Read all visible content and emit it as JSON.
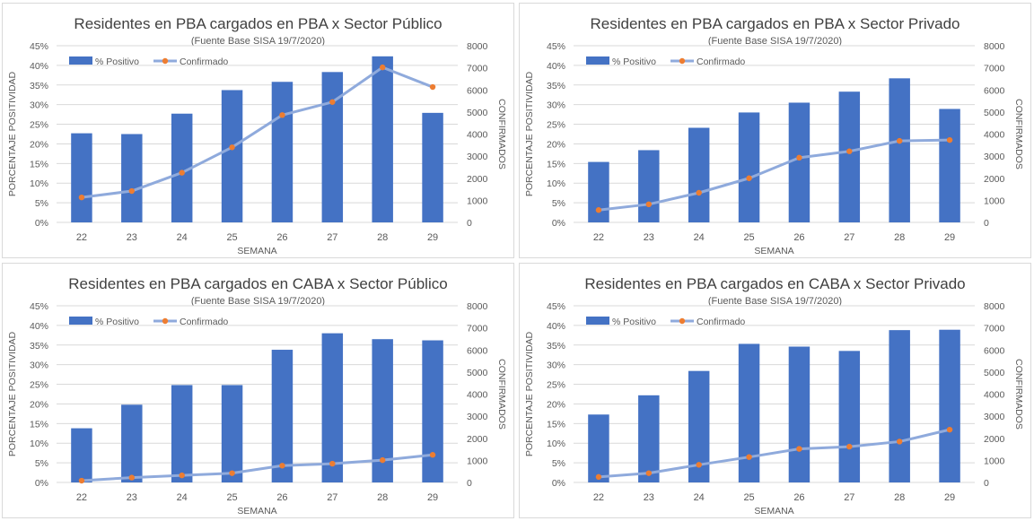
{
  "colors": {
    "bar": "#4472C4",
    "line": "#8FAADC",
    "marker": "#ED7D31",
    "grid": "#D9D9D9",
    "text": "#595959",
    "title": "#404040"
  },
  "chart_data": [
    {
      "type": "bar",
      "title": "Residentes en PBA cargados en PBA x Sector Público",
      "subtitle": "(Fuente  Base SISA 19/7/2020)",
      "xlabel": "SEMANA",
      "ylabel": "PORCENTAJE  POSITIVIDAD",
      "y2label": "CONFIRMADOS",
      "categories": [
        "22",
        "23",
        "24",
        "25",
        "26",
        "27",
        "28",
        "29"
      ],
      "ylim": [
        0,
        45
      ],
      "yticks": [
        "0%",
        "5%",
        "10%",
        "15%",
        "20%",
        "25%",
        "30%",
        "35%",
        "40%",
        "45%"
      ],
      "y2lim": [
        0,
        8000
      ],
      "y2ticks": [
        "0",
        "1000",
        "2000",
        "3000",
        "4000",
        "5000",
        "6000",
        "7000",
        "8000"
      ],
      "legend": [
        "% Positivo",
        "Confirmado"
      ],
      "series": [
        {
          "name": "% Positivo",
          "type": "bar",
          "axis": "left",
          "values": [
            22.7,
            22.5,
            27.7,
            33.7,
            35.8,
            38.3,
            42.3,
            27.9
          ]
        },
        {
          "name": "Confirmado",
          "type": "line",
          "axis": "right",
          "values": [
            1130,
            1420,
            2250,
            3400,
            4860,
            5450,
            7020,
            6130
          ]
        }
      ]
    },
    {
      "type": "bar",
      "title": "Residentes en PBA cargados en PBA x Sector Privado",
      "subtitle": "(Fuente  Base SISA 19/7/2020)",
      "xlabel": "SEMANA",
      "ylabel": "PORCENTAJE  POSITIVIDAD",
      "y2label": "CONFIRMADOS",
      "categories": [
        "22",
        "23",
        "24",
        "25",
        "26",
        "27",
        "28",
        "29"
      ],
      "ylim": [
        0,
        45
      ],
      "yticks": [
        "0%",
        "5%",
        "10%",
        "15%",
        "20%",
        "25%",
        "30%",
        "35%",
        "40%",
        "45%"
      ],
      "y2lim": [
        0,
        8000
      ],
      "y2ticks": [
        "0",
        "1000",
        "2000",
        "3000",
        "4000",
        "5000",
        "6000",
        "7000",
        "8000"
      ],
      "legend": [
        "% Positivo",
        "Confirmado"
      ],
      "series": [
        {
          "name": "% Positivo",
          "type": "bar",
          "axis": "left",
          "values": [
            15.4,
            18.4,
            24.1,
            28.0,
            30.5,
            33.3,
            36.7,
            28.9
          ]
        },
        {
          "name": "Confirmado",
          "type": "line",
          "axis": "right",
          "values": [
            560,
            820,
            1340,
            2000,
            2930,
            3220,
            3690,
            3730
          ]
        }
      ]
    },
    {
      "type": "bar",
      "title": "Residentes en PBA cargados en CABA x Sector Público",
      "subtitle": "(Fuente  Base SISA 19/7/2020)",
      "xlabel": "SEMANA",
      "ylabel": "PORCENTAJE  POSITIVIDAD",
      "y2label": "CONFIRMADOS",
      "categories": [
        "22",
        "23",
        "24",
        "25",
        "26",
        "27",
        "28",
        "29"
      ],
      "ylim": [
        0,
        45
      ],
      "yticks": [
        "0%",
        "5%",
        "10%",
        "15%",
        "20%",
        "25%",
        "30%",
        "35%",
        "40%",
        "45%"
      ],
      "y2lim": [
        0,
        8000
      ],
      "y2ticks": [
        "0",
        "1000",
        "2000",
        "3000",
        "4000",
        "5000",
        "6000",
        "7000",
        "8000"
      ],
      "legend": [
        "% Positivo",
        "Confirmado"
      ],
      "series": [
        {
          "name": "% Positivo",
          "type": "bar",
          "axis": "left",
          "values": [
            13.8,
            19.8,
            24.8,
            24.8,
            33.8,
            38.0,
            36.5,
            36.2
          ]
        },
        {
          "name": "Confirmado",
          "type": "line",
          "axis": "right",
          "values": [
            80,
            220,
            320,
            420,
            760,
            850,
            1010,
            1250
          ]
        }
      ]
    },
    {
      "type": "bar",
      "title": "Residentes en PBA cargados en CABA x Sector Privado",
      "subtitle": "(Fuente  Base SISA 19/7/2020)",
      "xlabel": "SEMANA",
      "ylabel": "PORCENTAJE  POSITIVIDAD",
      "y2label": "CONFIRMADOS",
      "categories": [
        "22",
        "23",
        "24",
        "25",
        "26",
        "27",
        "28",
        "29"
      ],
      "ylim": [
        0,
        45
      ],
      "yticks": [
        "0%",
        "5%",
        "10%",
        "15%",
        "20%",
        "25%",
        "30%",
        "35%",
        "40%",
        "45%"
      ],
      "y2lim": [
        0,
        8000
      ],
      "y2ticks": [
        "0",
        "1000",
        "2000",
        "3000",
        "4000",
        "5000",
        "6000",
        "7000",
        "8000"
      ],
      "legend": [
        "% Positivo",
        "Confirmado"
      ],
      "series": [
        {
          "name": "% Positivo",
          "type": "bar",
          "axis": "left",
          "values": [
            17.3,
            22.2,
            28.4,
            35.3,
            34.6,
            33.5,
            38.8,
            38.9
          ]
        },
        {
          "name": "Confirmado",
          "type": "line",
          "axis": "right",
          "values": [
            250,
            420,
            800,
            1150,
            1520,
            1620,
            1850,
            2390
          ]
        }
      ]
    }
  ]
}
